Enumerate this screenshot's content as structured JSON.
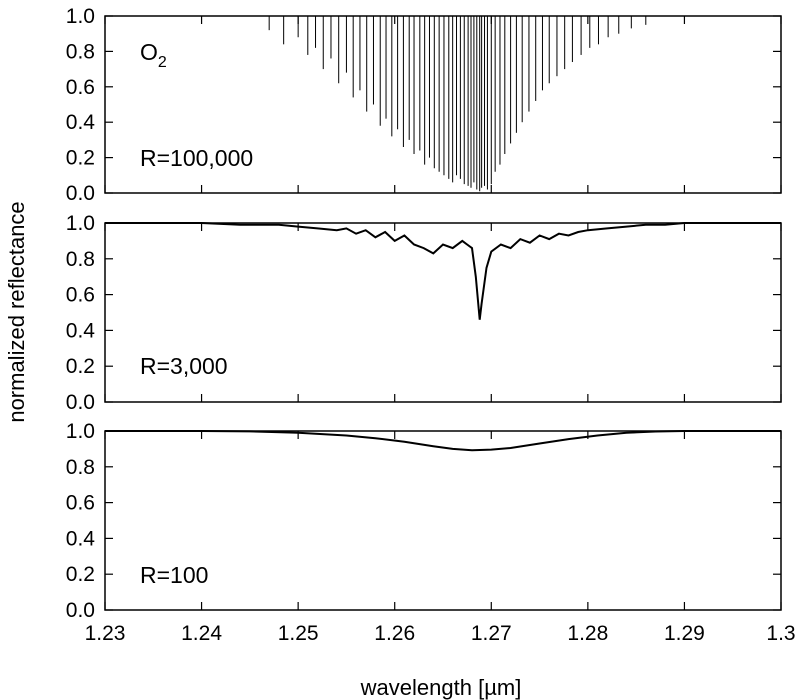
{
  "chart_data": {
    "type": "line",
    "ylabel": "normalized reflectance",
    "xlabel": "wavelength [µm]",
    "xlim": [
      1.23,
      1.3
    ],
    "x_ticks": [
      "1.23",
      "1.24",
      "1.25",
      "1.26",
      "1.27",
      "1.28",
      "1.29",
      "1.3"
    ],
    "x_tick_values": [
      1.23,
      1.24,
      1.25,
      1.26,
      1.27,
      1.28,
      1.29,
      1.3
    ],
    "y_ticks": [
      "0.0",
      "0.2",
      "0.4",
      "0.6",
      "0.8",
      "1.0"
    ],
    "y_tick_values": [
      0,
      0.2,
      0.4,
      0.6,
      0.8,
      1.0
    ],
    "ylim": [
      0,
      1.0
    ],
    "species_label": "O",
    "species_subscript": "2",
    "panels": [
      {
        "label": "R=100,000",
        "resolution": 100000,
        "lines": {
          "wavelength": [
            1.247,
            1.2485,
            1.25,
            1.251,
            1.2518,
            1.2526,
            1.2534,
            1.2542,
            1.255,
            1.2557,
            1.2564,
            1.2571,
            1.2578,
            1.2585,
            1.2591,
            1.2597,
            1.2603,
            1.2609,
            1.2615,
            1.262,
            1.2626,
            1.2631,
            1.2636,
            1.2641,
            1.2646,
            1.2651,
            1.2656,
            1.266,
            1.2664,
            1.2668,
            1.2672,
            1.2676,
            1.2679,
            1.2682,
            1.2685,
            1.2688,
            1.269,
            1.2693,
            1.2696,
            1.27,
            1.2704,
            1.2709,
            1.2714,
            1.272,
            1.2726,
            1.2732,
            1.2739,
            1.2746,
            1.2753,
            1.276,
            1.2768,
            1.2776,
            1.2784,
            1.2793,
            1.2802,
            1.2811,
            1.2821,
            1.2832,
            1.2845,
            1.286
          ],
          "depth_min": [
            0.92,
            0.84,
            0.88,
            0.78,
            0.82,
            0.7,
            0.76,
            0.62,
            0.68,
            0.54,
            0.58,
            0.46,
            0.5,
            0.38,
            0.42,
            0.32,
            0.36,
            0.26,
            0.3,
            0.22,
            0.24,
            0.16,
            0.2,
            0.14,
            0.12,
            0.1,
            0.08,
            0.06,
            0.1,
            0.08,
            0.05,
            0.04,
            0.03,
            0.06,
            0.02,
            0.01,
            0.03,
            0.04,
            0.02,
            0.05,
            0.12,
            0.16,
            0.22,
            0.28,
            0.34,
            0.4,
            0.46,
            0.52,
            0.58,
            0.62,
            0.66,
            0.7,
            0.74,
            0.78,
            0.82,
            0.84,
            0.88,
            0.9,
            0.93,
            0.95
          ]
        }
      },
      {
        "label": "R=3,000",
        "resolution": 3000,
        "curve": {
          "wavelength": [
            1.23,
            1.24,
            1.244,
            1.248,
            1.25,
            1.252,
            1.254,
            1.255,
            1.256,
            1.257,
            1.258,
            1.259,
            1.26,
            1.261,
            1.262,
            1.263,
            1.264,
            1.265,
            1.266,
            1.267,
            1.2675,
            1.268,
            1.2684,
            1.2688,
            1.269,
            1.2695,
            1.27,
            1.271,
            1.272,
            1.273,
            1.274,
            1.275,
            1.276,
            1.277,
            1.278,
            1.279,
            1.28,
            1.282,
            1.284,
            1.286,
            1.288,
            1.29,
            1.294,
            1.3
          ],
          "reflectance": [
            1.0,
            1.0,
            0.99,
            0.99,
            0.98,
            0.97,
            0.96,
            0.97,
            0.94,
            0.96,
            0.92,
            0.95,
            0.9,
            0.93,
            0.88,
            0.86,
            0.83,
            0.88,
            0.86,
            0.9,
            0.88,
            0.86,
            0.7,
            0.46,
            0.55,
            0.75,
            0.84,
            0.88,
            0.86,
            0.91,
            0.89,
            0.93,
            0.91,
            0.94,
            0.93,
            0.95,
            0.96,
            0.97,
            0.98,
            0.99,
            0.99,
            1.0,
            1.0,
            1.0
          ]
        }
      },
      {
        "label": "R=100",
        "resolution": 100,
        "curve": {
          "wavelength": [
            1.23,
            1.24,
            1.245,
            1.25,
            1.255,
            1.258,
            1.261,
            1.264,
            1.266,
            1.268,
            1.27,
            1.272,
            1.275,
            1.278,
            1.281,
            1.284,
            1.287,
            1.29,
            1.295,
            1.3
          ],
          "reflectance": [
            1.0,
            1.0,
            0.998,
            0.99,
            0.975,
            0.96,
            0.94,
            0.915,
            0.9,
            0.893,
            0.896,
            0.905,
            0.93,
            0.955,
            0.975,
            0.99,
            0.997,
            1.0,
            1.0,
            1.0
          ]
        }
      }
    ]
  }
}
